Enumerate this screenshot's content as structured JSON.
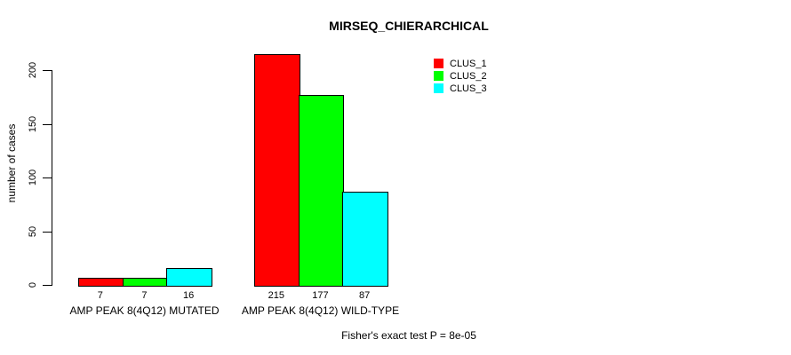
{
  "chart_data": {
    "type": "bar",
    "title": "MIRSEQ_CHIERARCHICAL",
    "ylabel": "number of cases",
    "xlabel": "",
    "annotation": "Fisher's exact test P = 8e-05",
    "categories": [
      "AMP PEAK 8(4Q12) MUTATED",
      "AMP PEAK 8(4Q12) WILD-TYPE"
    ],
    "series": [
      {
        "name": "CLUS_1",
        "color": "#ff0000",
        "values": [
          7,
          215
        ]
      },
      {
        "name": "CLUS_2",
        "color": "#00ff00",
        "values": [
          7,
          177
        ]
      },
      {
        "name": "CLUS_3",
        "color": "#00ffff",
        "values": [
          16,
          87
        ]
      }
    ],
    "bar_value_labels": [
      [
        "7",
        "7",
        "16"
      ],
      [
        "215",
        "177",
        "87"
      ]
    ],
    "yticks": [
      0,
      50,
      100,
      150,
      200
    ],
    "ylim": [
      0,
      215
    ],
    "grid": false,
    "legend_position": "top-right",
    "bar_border_color": "#000000",
    "background_color": "#ffffff"
  }
}
